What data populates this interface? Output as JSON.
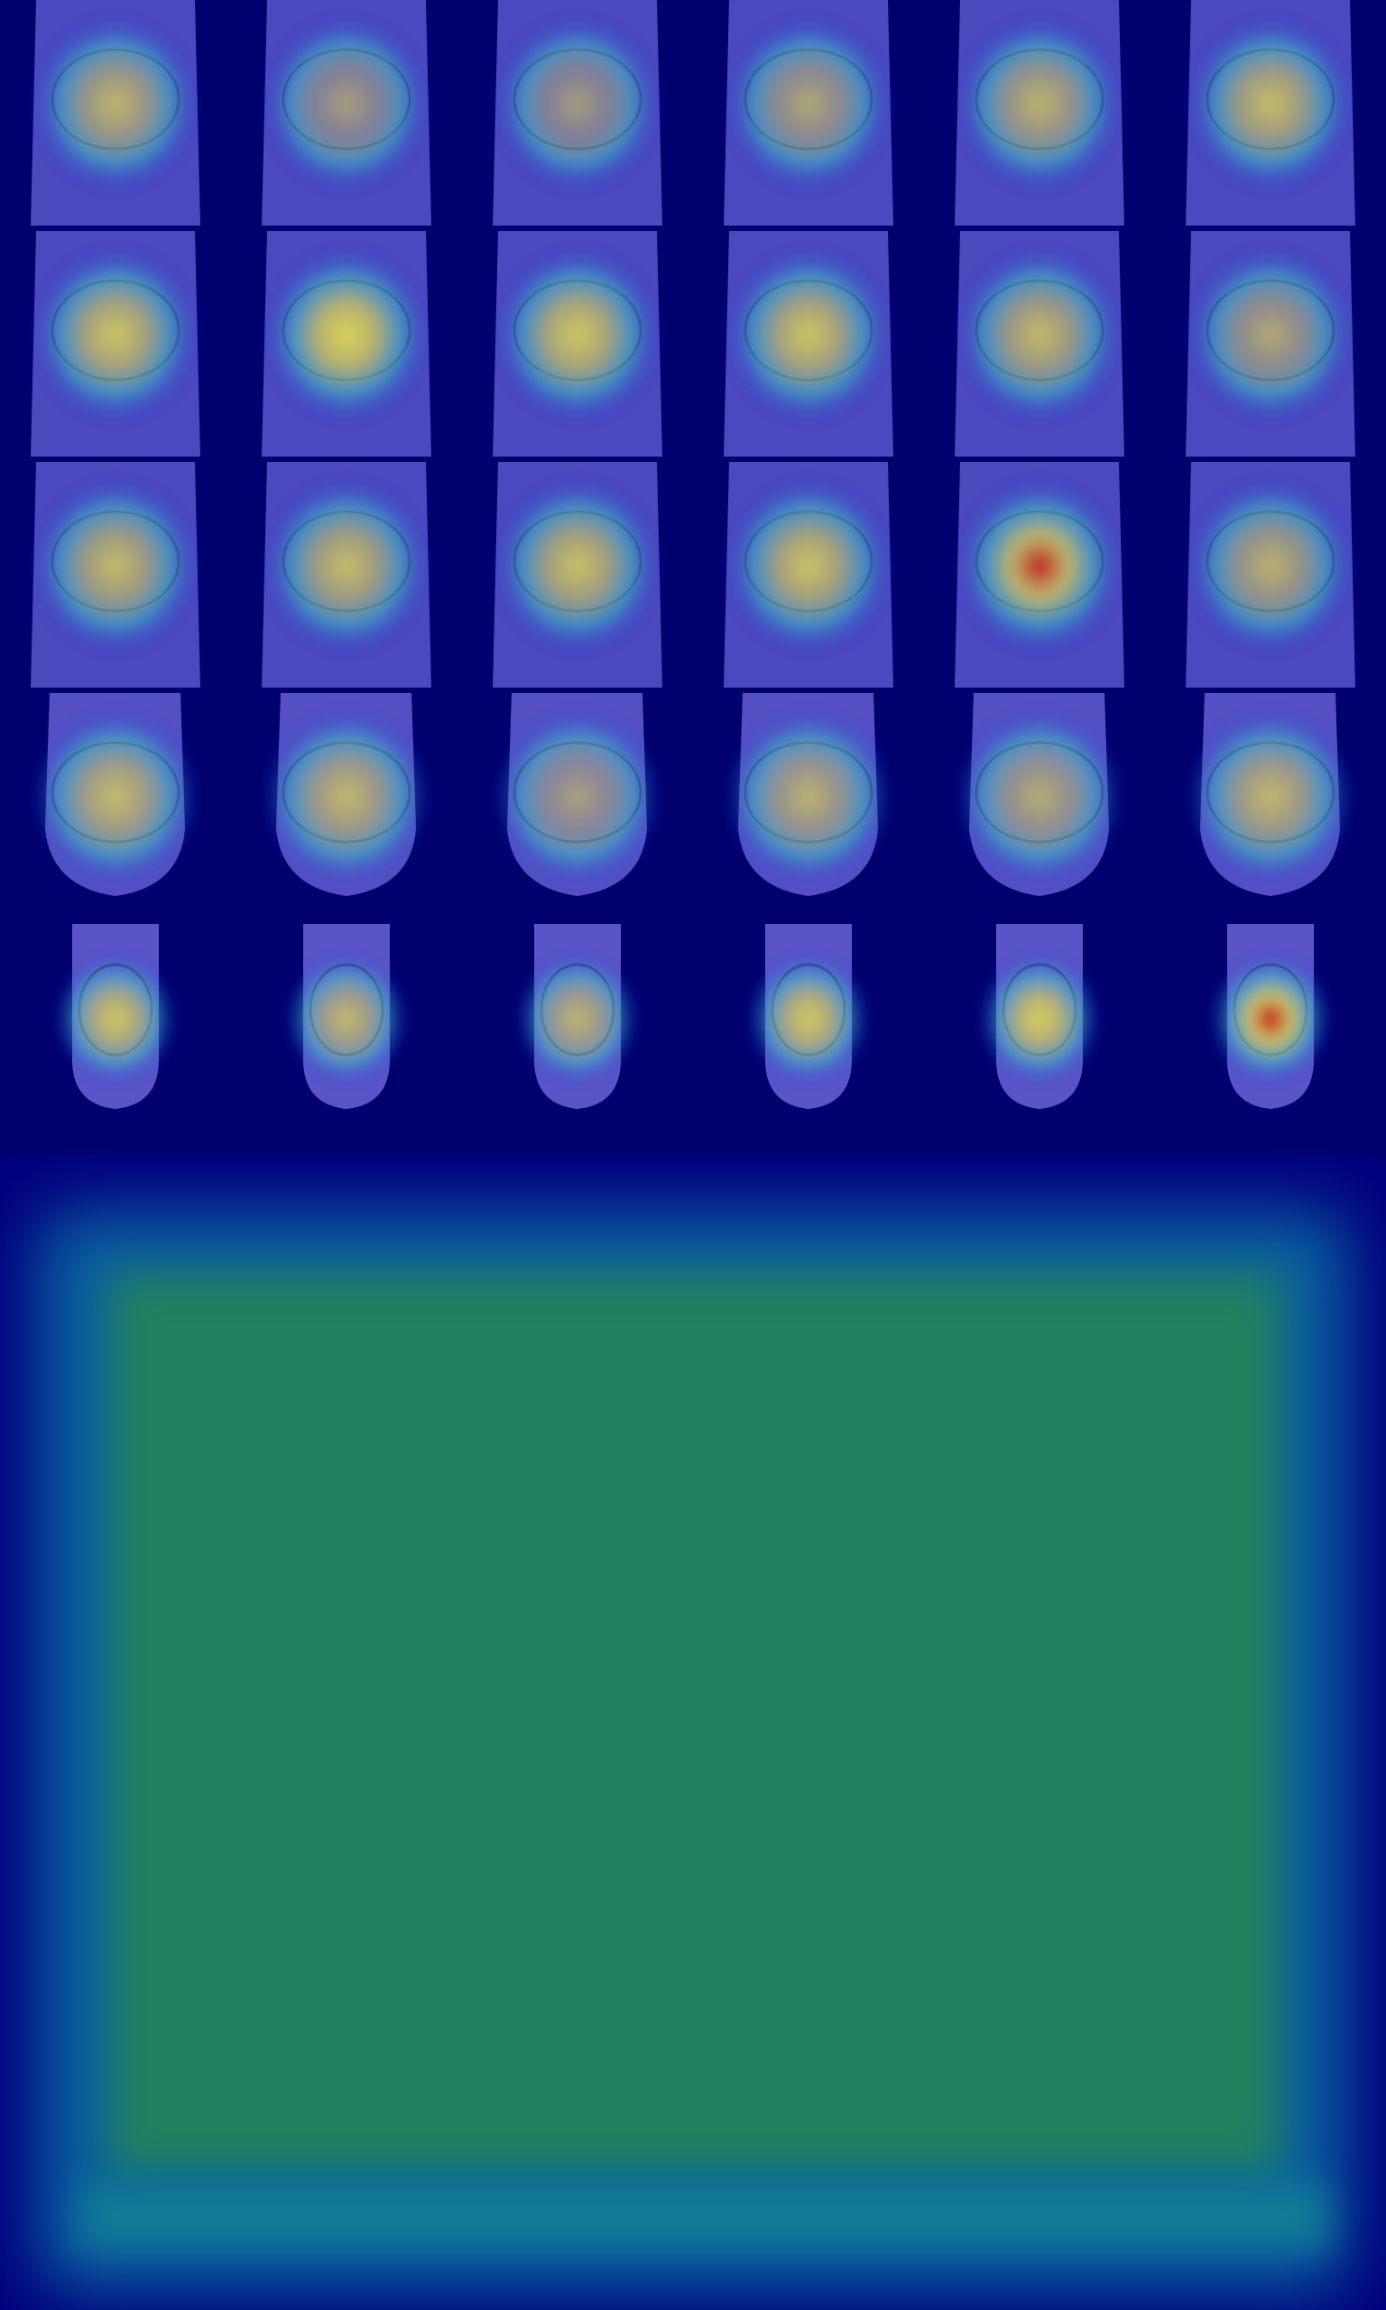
{
  "image": {
    "description_type": "mri-knee-heatmap-grid",
    "colormap": "jet",
    "colors": {
      "background": "#000080",
      "low": "#1a2fd6",
      "mid": "#38c7c9",
      "high": "#e8e24a",
      "peak": "#c81414",
      "panel_green": "#20825e"
    }
  },
  "slices": [
    {
      "intensity": 0.55,
      "view": "coronal-wide"
    },
    {
      "intensity": 0.3,
      "view": "coronal-wide"
    },
    {
      "intensity": 0.28,
      "view": "coronal-wide"
    },
    {
      "intensity": 0.4,
      "view": "coronal-wide"
    },
    {
      "intensity": 0.52,
      "view": "coronal-wide"
    },
    {
      "intensity": 0.62,
      "view": "coronal-wide"
    },
    {
      "intensity": 0.7,
      "view": "coronal-wide"
    },
    {
      "intensity": 0.85,
      "view": "coronal-wide"
    },
    {
      "intensity": 0.72,
      "view": "coronal-wide"
    },
    {
      "intensity": 0.7,
      "view": "coronal-wide"
    },
    {
      "intensity": 0.58,
      "view": "coronal-wide"
    },
    {
      "intensity": 0.42,
      "view": "coronal-wide"
    },
    {
      "intensity": 0.6,
      "view": "coronal-mid"
    },
    {
      "intensity": 0.62,
      "view": "coronal-mid"
    },
    {
      "intensity": 0.65,
      "view": "coronal-mid"
    },
    {
      "intensity": 0.68,
      "view": "coronal-mid"
    },
    {
      "intensity": 0.9,
      "view": "coronal-mid"
    },
    {
      "intensity": 0.5,
      "view": "coronal-mid"
    },
    {
      "intensity": 0.58,
      "view": "posterior"
    },
    {
      "intensity": 0.55,
      "view": "posterior"
    },
    {
      "intensity": 0.3,
      "view": "posterior"
    },
    {
      "intensity": 0.48,
      "view": "posterior"
    },
    {
      "intensity": 0.42,
      "view": "posterior"
    },
    {
      "intensity": 0.55,
      "view": "posterior"
    },
    {
      "intensity": 0.7,
      "view": "round"
    },
    {
      "intensity": 0.55,
      "view": "round"
    },
    {
      "intensity": 0.5,
      "view": "round"
    },
    {
      "intensity": 0.72,
      "view": "round"
    },
    {
      "intensity": 0.78,
      "view": "round"
    },
    {
      "intensity": 1.0,
      "view": "round"
    }
  ]
}
